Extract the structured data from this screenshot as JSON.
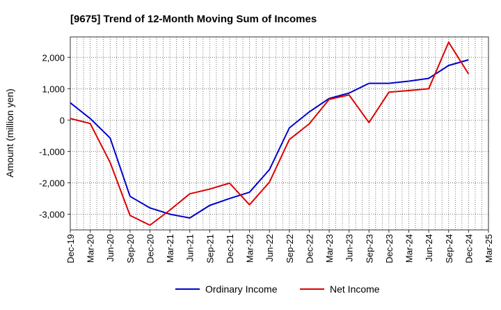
{
  "colors": {
    "ordinary_income": "#0000cc",
    "net_income": "#dd0000",
    "grid": "#555555",
    "axis": "#333333"
  },
  "chart_data": {
    "type": "line",
    "title": "[9675]  Trend of 12-Month Moving Sum of Incomes",
    "xlabel": "",
    "ylabel": "Amount (million yen)",
    "ylim": [
      -3500,
      2650
    ],
    "yticks": [
      2000,
      1000,
      0,
      -1000,
      -2000,
      -3000
    ],
    "ytick_labels": [
      "2,000",
      "1,000",
      "0",
      "-1,000",
      "-2,000",
      "-3,000"
    ],
    "grid": true,
    "legend_position": "bottom-center",
    "categories": [
      "Dec-19",
      "Jan-20",
      "Feb-20",
      "Mar-20",
      "Apr-20",
      "May-20",
      "Jun-20",
      "Jul-20",
      "Aug-20",
      "Sep-20",
      "Oct-20",
      "Nov-20",
      "Dec-20",
      "Jan-21",
      "Feb-21",
      "Mar-21",
      "Apr-21",
      "May-21",
      "Jun-21",
      "Jul-21",
      "Aug-21",
      "Sep-21",
      "Oct-21",
      "Nov-21",
      "Dec-21",
      "Jan-22",
      "Feb-22",
      "Mar-22",
      "Apr-22",
      "May-22",
      "Jun-22",
      "Jul-22",
      "Aug-22",
      "Sep-22",
      "Oct-22",
      "Nov-22",
      "Dec-22",
      "Jan-23",
      "Feb-23",
      "Mar-23",
      "Apr-23",
      "May-23",
      "Jun-23",
      "Jul-23",
      "Aug-23",
      "Sep-23",
      "Oct-23",
      "Nov-23",
      "Dec-23",
      "Jan-24",
      "Feb-24",
      "Mar-24",
      "Apr-24",
      "May-24",
      "Jun-24",
      "Jul-24",
      "Aug-24",
      "Sep-24",
      "Oct-24",
      "Nov-24",
      "Dec-24",
      "Jan-25",
      "Feb-25",
      "Mar-25"
    ],
    "x_tick_labels": [
      "Dec-19",
      "Mar-20",
      "Jun-20",
      "Sep-20",
      "Dec-20",
      "Mar-21",
      "Jun-21",
      "Sep-21",
      "Dec-21",
      "Mar-22",
      "Jun-22",
      "Sep-22",
      "Dec-22",
      "Mar-23",
      "Jun-23",
      "Sep-23",
      "Dec-23",
      "Mar-24",
      "Jun-24",
      "Sep-24",
      "Dec-24",
      "Mar-25"
    ],
    "series": [
      {
        "name": "Ordinary Income",
        "color": "#0000cc",
        "x": [
          "Dec-19",
          "Mar-20",
          "Jun-20",
          "Sep-20",
          "Dec-20",
          "Mar-21",
          "Jun-21",
          "Sep-21",
          "Dec-21",
          "Mar-22",
          "Jun-22",
          "Sep-22",
          "Dec-22",
          "Mar-23",
          "Jun-23",
          "Sep-23",
          "Dec-23",
          "Mar-24",
          "Jun-24",
          "Sep-24",
          "Dec-24"
        ],
        "values": [
          550,
          50,
          -570,
          -2430,
          -2800,
          -3000,
          -3120,
          -2720,
          -2500,
          -2300,
          -1580,
          -250,
          260,
          690,
          860,
          1170,
          1170,
          1240,
          1330,
          1740,
          1920
        ]
      },
      {
        "name": "Net Income",
        "color": "#dd0000",
        "x": [
          "Dec-19",
          "Mar-20",
          "Jun-20",
          "Sep-20",
          "Dec-20",
          "Mar-21",
          "Jun-21",
          "Sep-21",
          "Dec-21",
          "Mar-22",
          "Jun-22",
          "Sep-22",
          "Dec-22",
          "Mar-23",
          "Jun-23",
          "Sep-23",
          "Dec-23",
          "Mar-24",
          "Jun-24",
          "Sep-24",
          "Dec-24"
        ],
        "values": [
          50,
          -110,
          -1350,
          -3040,
          -3350,
          -2870,
          -2350,
          -2200,
          -2010,
          -2700,
          -1980,
          -620,
          -120,
          660,
          800,
          -80,
          890,
          940,
          1000,
          2480,
          1470
        ]
      }
    ]
  }
}
